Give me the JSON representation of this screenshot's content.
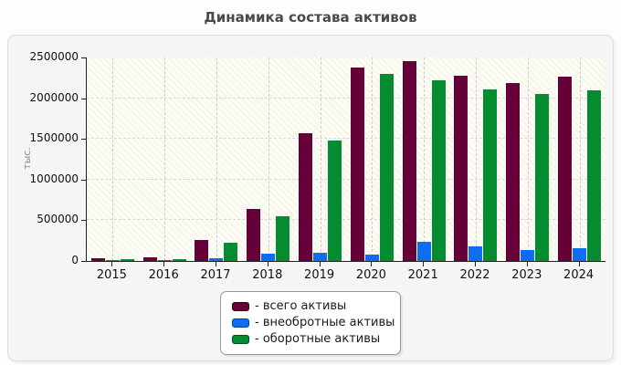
{
  "chart_data": {
    "type": "bar",
    "title": "Динамика состава активов",
    "ylabel": "тыс.",
    "xlabel": "",
    "ylim": [
      0,
      2500000
    ],
    "yticks": [
      0,
      500000,
      1000000,
      1500000,
      2000000,
      2500000
    ],
    "grid": "dashed horizontal gridlines at y ticks, dashed vertical gridlines at each year center",
    "legend_position": "bottom-center",
    "plot_background": "#fcfcf4 with light diagonal hatch",
    "categories": [
      "2015",
      "2016",
      "2017",
      "2018",
      "2019",
      "2020",
      "2021",
      "2022",
      "2023",
      "2024"
    ],
    "series": [
      {
        "name": "всего активы",
        "legend_label": "- всего активы",
        "color": "#650038",
        "swatch_border": "#30001a",
        "values": [
          30000,
          40000,
          255000,
          635000,
          1575000,
          2375000,
          2460000,
          2280000,
          2190000,
          2260000
        ]
      },
      {
        "name": "внеобротные активы",
        "legend_label": "- внеобротные активы",
        "color": "#0d6ef2",
        "swatch_border": "#083f9e",
        "values": [
          10000,
          15000,
          30000,
          90000,
          100000,
          75000,
          240000,
          175000,
          140000,
          160000
        ]
      },
      {
        "name": "оборотные активы",
        "legend_label": "- оборотные активы",
        "color": "#058c30",
        "swatch_border": "#024d1b",
        "values": [
          20000,
          25000,
          225000,
          545000,
          1475000,
          2300000,
          2220000,
          2105000,
          2050000,
          2100000
        ]
      }
    ]
  }
}
